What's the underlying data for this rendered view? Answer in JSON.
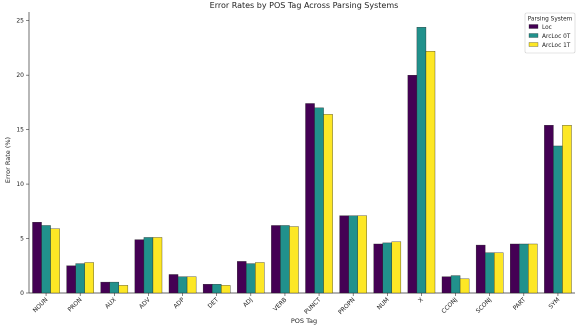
{
  "chart_data": {
    "type": "bar",
    "title": "Error Rates by POS Tag Across Parsing Systems",
    "xlabel": "POS Tag",
    "ylabel": "Error Rate (%)",
    "ylim": [
      0,
      25.8
    ],
    "yticks": [
      0,
      5,
      10,
      15,
      20,
      25
    ],
    "grid": false,
    "legend": {
      "title": "Parsing System",
      "placement": "top-right"
    },
    "categories": [
      "NOUN",
      "PRON",
      "AUX",
      "ADV",
      "ADP",
      "DET",
      "ADJ",
      "VERB",
      "PUNCT",
      "PROPN",
      "NUM",
      "X",
      "CCONJ",
      "SCONJ",
      "PART",
      "SYM"
    ],
    "series": [
      {
        "name": "Loc",
        "color": "#440154",
        "values": [
          6.5,
          2.5,
          1.0,
          4.9,
          1.7,
          0.8,
          2.9,
          6.2,
          17.4,
          7.1,
          4.5,
          20.0,
          1.5,
          4.4,
          4.5,
          15.4
        ]
      },
      {
        "name": "ArcLoc 0T",
        "color": "#21918c",
        "values": [
          6.2,
          2.7,
          1.0,
          5.1,
          1.5,
          0.8,
          2.7,
          6.2,
          17.0,
          7.1,
          4.6,
          24.4,
          1.6,
          3.7,
          4.5,
          13.5
        ]
      },
      {
        "name": "ArcLoc 1T",
        "color": "#fde725",
        "values": [
          5.9,
          2.8,
          0.7,
          5.1,
          1.5,
          0.7,
          2.8,
          6.1,
          16.4,
          7.1,
          4.7,
          22.2,
          1.3,
          3.7,
          4.5,
          15.4
        ]
      }
    ]
  }
}
